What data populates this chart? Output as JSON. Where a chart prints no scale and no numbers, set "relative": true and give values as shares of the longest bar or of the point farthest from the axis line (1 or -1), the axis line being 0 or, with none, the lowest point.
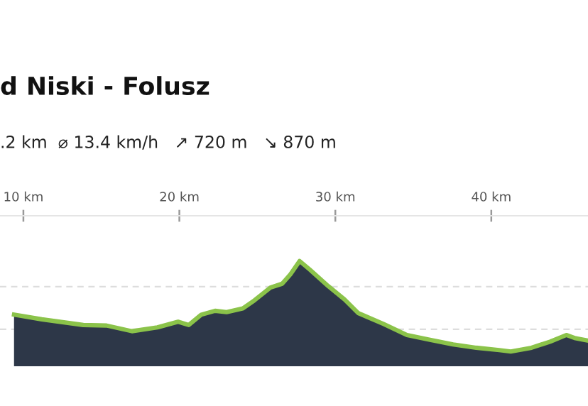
{
  "chart_data": {
    "type": "area",
    "title": "d Niski - Folusz",
    "subtitle": ".2 km  ⌀ 13.4 km/h   ↗ 720 m   ↘ 870 m",
    "relative": true,
    "x": [
      9.4,
      11.18,
      13.84,
      15.33,
      16.96,
      18.59,
      19.92,
      20.6,
      21.4,
      22.29,
      23.03,
      24.07,
      24.81,
      25.84,
      26.59,
      27.12,
      27.71,
      28.36,
      29.55,
      30.59,
      31.47,
      33.1,
      34.59,
      36.07,
      37.55,
      39.03,
      40.51,
      41.25,
      42.58,
      43.77,
      44.81,
      45.4,
      46.2
    ],
    "series": [
      {
        "color": "#2d3748",
        "values": [
          0.49,
          0.446,
          0.392,
          0.387,
          0.333,
          0.369,
          0.423,
          0.392,
          0.49,
          0.527,
          0.514,
          0.55,
          0.626,
          0.748,
          0.784,
          0.874,
          1.0,
          0.919,
          0.761,
          0.635,
          0.505,
          0.401,
          0.297,
          0.252,
          0.207,
          0.176,
          0.153,
          0.14,
          0.176,
          0.234,
          0.297,
          0.266,
          0.243
        ]
      }
    ],
    "xlim": [
      8.5,
      46.2
    ],
    "xticks": [
      {
        "value": 10,
        "label": "10 km"
      },
      {
        "value": 20,
        "label": "20 km"
      },
      {
        "value": 30,
        "label": "30 km"
      },
      {
        "value": 40,
        "label": "40 km"
      }
    ],
    "ref_lines": [
      {
        "axis": "y",
        "value": 0.757,
        "color": "#dddddd",
        "line_style": "dashed"
      },
      {
        "axis": "y",
        "value": 0.351,
        "color": "#dddddd",
        "line_style": "dashed"
      }
    ],
    "grid": false,
    "legend": false
  }
}
